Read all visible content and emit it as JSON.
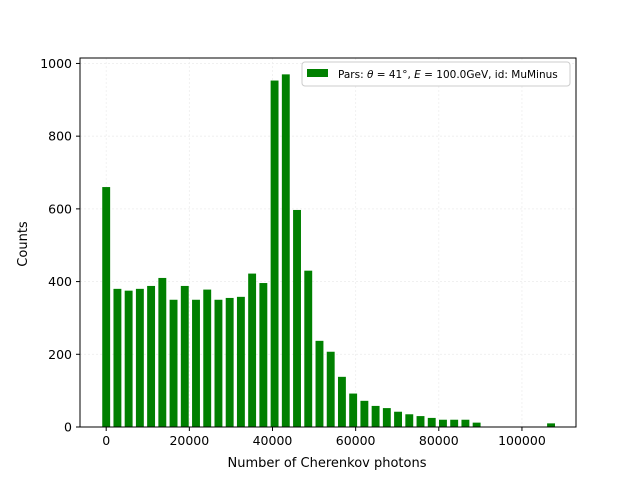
{
  "chart_data": {
    "type": "bar",
    "xlabel": "Number of Cherenkov photons",
    "ylabel": "Counts",
    "xlim": [
      -6300,
      113000
    ],
    "ylim": [
      0,
      1015
    ],
    "xticks": [
      0,
      20000,
      40000,
      60000,
      80000,
      100000
    ],
    "yticks": [
      0,
      200,
      400,
      600,
      800,
      1000
    ],
    "grid": true,
    "legend_position": "top-right",
    "bar_width": 1900,
    "series": [
      {
        "name": "Pars: θ = 41°, E = 100.0GeV, id: MuMinus",
        "color": "#008000",
        "x": [
          0,
          2700,
          5400,
          8100,
          10800,
          13500,
          16200,
          18900,
          21600,
          24300,
          27000,
          29700,
          32400,
          35100,
          37800,
          40500,
          43200,
          45900,
          48600,
          51300,
          54000,
          56700,
          59400,
          62100,
          64800,
          67500,
          70200,
          72900,
          75600,
          78300,
          81000,
          83700,
          86400,
          89100,
          107000
        ],
        "values": [
          660,
          380,
          375,
          380,
          388,
          410,
          350,
          388,
          350,
          378,
          350,
          355,
          358,
          422,
          396,
          953,
          970,
          597,
          430,
          237,
          207,
          138,
          92,
          72,
          58,
          52,
          42,
          35,
          30,
          25,
          20,
          20,
          20,
          12,
          10
        ]
      }
    ]
  },
  "legend": {
    "label_prefix": "Pars: ",
    "theta_symbol": "θ",
    "theta_value": " = 41°, ",
    "energy_symbol": "E",
    "energy_value": " = 100.0GeV, id: MuMinus"
  }
}
